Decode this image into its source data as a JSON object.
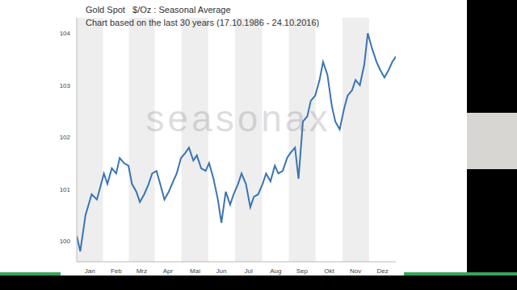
{
  "chart_data": {
    "type": "line",
    "title": "Gold Spot   $/Oz : Seasonal Average",
    "subtitle": "Chart based on the last 30 years (17.10.1986 - 24.10.2016)",
    "watermark": "seasonax",
    "x": [
      1,
      5,
      11,
      18,
      24,
      32,
      36,
      41,
      46,
      50,
      55,
      60,
      64,
      69,
      73,
      78,
      83,
      87,
      92,
      97,
      101,
      106,
      111,
      115,
      120,
      125,
      129,
      134,
      138,
      143,
      148,
      152,
      157,
      162,
      166,
      171,
      176,
      180,
      185,
      189,
      194,
      199,
      203,
      208,
      213,
      217,
      222,
      227,
      231,
      236,
      241,
      245,
      250,
      254,
      259,
      264,
      268,
      273,
      278,
      282,
      287,
      292,
      296,
      301,
      306,
      310,
      315,
      319,
      324,
      329,
      333,
      338,
      343,
      347,
      352,
      357,
      361,
      365
    ],
    "values": [
      100.1,
      99.8,
      100.5,
      100.9,
      100.8,
      101.3,
      101.1,
      101.4,
      101.3,
      101.6,
      101.5,
      101.45,
      101.1,
      100.95,
      100.75,
      100.9,
      101.1,
      101.3,
      101.35,
      101.05,
      100.8,
      100.95,
      101.15,
      101.3,
      101.6,
      101.7,
      101.8,
      101.55,
      101.65,
      101.4,
      101.35,
      101.5,
      101.2,
      100.8,
      100.35,
      100.95,
      100.7,
      100.9,
      101.1,
      101.3,
      101.1,
      100.65,
      100.85,
      100.9,
      101.1,
      101.3,
      101.15,
      101.45,
      101.3,
      101.35,
      101.6,
      101.7,
      101.8,
      101.2,
      102.3,
      102.4,
      102.7,
      102.8,
      103.1,
      103.45,
      103.2,
      102.6,
      102.3,
      102.15,
      102.55,
      102.8,
      102.9,
      103.1,
      103.0,
      103.4,
      104.0,
      103.7,
      103.45,
      103.3,
      103.15,
      103.3,
      103.45,
      103.55
    ],
    "color": "#3a74b4",
    "xlim": [
      1,
      365
    ],
    "xticks": [
      {
        "value": 16,
        "label": "Jan"
      },
      {
        "value": 46,
        "label": "Feb"
      },
      {
        "value": 75,
        "label": "Mrz"
      },
      {
        "value": 105,
        "label": "Apr"
      },
      {
        "value": 136,
        "label": "Mai"
      },
      {
        "value": 166,
        "label": "Jun"
      },
      {
        "value": 197,
        "label": "Jul"
      },
      {
        "value": 228,
        "label": "Aug"
      },
      {
        "value": 258,
        "label": "Sep"
      },
      {
        "value": 289,
        "label": "Okt"
      },
      {
        "value": 319,
        "label": "Nov"
      },
      {
        "value": 350,
        "label": "Dez"
      }
    ],
    "ylim": [
      99.6,
      104.3
    ],
    "yticks": [
      100,
      101,
      102,
      103,
      104
    ],
    "grid": false
  }
}
